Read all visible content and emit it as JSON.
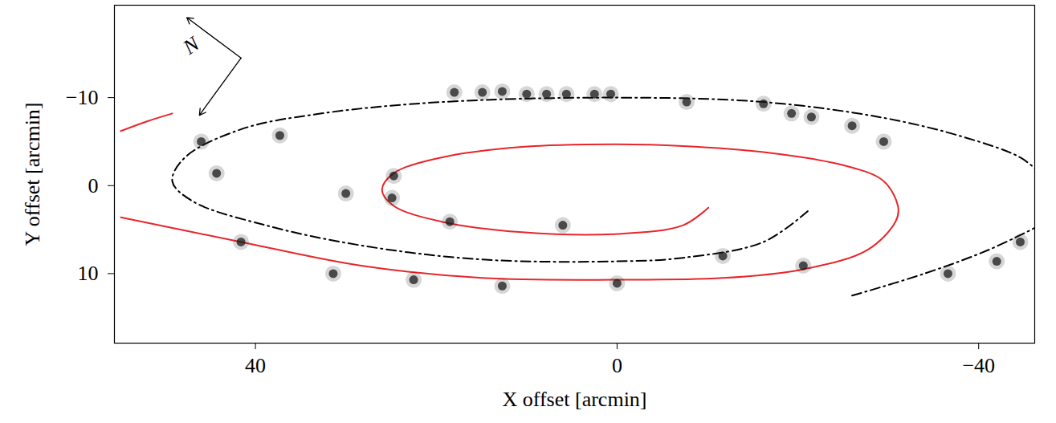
{
  "chart_data": {
    "type": "scatter",
    "xlabel": "X offset [arcmin]",
    "ylabel": "Y offset [arcmin]",
    "xlim": [
      -46.2,
      55.6
    ],
    "ylim": [
      -20.5,
      17.9
    ],
    "xticks": [
      40,
      0,
      -40
    ],
    "yticks": [
      -10,
      0,
      10
    ],
    "grid": false,
    "annotations": [
      {
        "text": "N",
        "x": 47.1,
        "y": -15.9
      }
    ],
    "series": [
      {
        "type": "line",
        "color": "#e8262b",
        "line_style": "solid",
        "values": [
          [
            54.9,
            3.6
          ],
          [
            41.6,
            6.4
          ],
          [
            28.3,
            9.1
          ],
          [
            14.9,
            10.5
          ],
          [
            0,
            10.7
          ],
          [
            -11.7,
            10.5
          ],
          [
            -20.6,
            9.5
          ],
          [
            -27.7,
            7.3
          ],
          [
            -30.8,
            4.1
          ],
          [
            -31.1,
            2.5
          ],
          [
            -29.5,
            -0.5
          ],
          [
            -25.1,
            -2.3
          ],
          [
            -16.2,
            -3.8
          ],
          [
            -7.3,
            -4.5
          ],
          [
            0,
            -4.7
          ],
          [
            10.5,
            -4.4
          ],
          [
            19.4,
            -3.2
          ],
          [
            24.7,
            -1.4
          ],
          [
            26.0,
            0.5
          ],
          [
            24.7,
            2.3
          ],
          [
            19.4,
            4.1
          ],
          [
            10.5,
            5.3
          ],
          [
            0,
            5.5
          ],
          [
            -7.3,
            4.5
          ],
          [
            -10.1,
            2.5
          ]
        ]
      },
      {
        "type": "line",
        "color": "#e8262b",
        "line_style": "solid",
        "values": [
          [
            54.9,
            -6.2
          ],
          [
            52.0,
            -7.3
          ],
          [
            49.2,
            -8.2
          ]
        ]
      },
      {
        "type": "line",
        "color": "#000000",
        "line_style": "dashdot",
        "values": [
          [
            -21.1,
            2.9
          ],
          [
            -16.2,
            6.4
          ],
          [
            -7.3,
            8.2
          ],
          [
            0,
            8.6
          ],
          [
            14.9,
            8.4
          ],
          [
            28.3,
            6.8
          ],
          [
            38.9,
            4.5
          ],
          [
            46.9,
            1.8
          ],
          [
            49.2,
            -0.5
          ],
          [
            47.8,
            -3.2
          ],
          [
            41.6,
            -6.4
          ],
          [
            32.7,
            -8.2
          ],
          [
            19.4,
            -9.5
          ],
          [
            0,
            -10.0
          ],
          [
            -16.2,
            -9.5
          ],
          [
            -29.5,
            -7.7
          ],
          [
            -38.4,
            -5.5
          ],
          [
            -44.6,
            -3.2
          ],
          [
            -46.8,
            -1.4
          ]
        ]
      },
      {
        "type": "line",
        "color": "#000000",
        "line_style": "dashdot",
        "values": [
          [
            -26.0,
            12.5
          ],
          [
            -34.0,
            10.0
          ],
          [
            -41.1,
            7.3
          ],
          [
            -46.8,
            4.5
          ]
        ]
      },
      {
        "type": "scatter",
        "color": "#1a1a1a",
        "marker": "circle",
        "values": [
          [
            18.0,
            -10.6
          ],
          [
            14.9,
            -10.6
          ],
          [
            12.7,
            -10.7
          ],
          [
            10.0,
            -10.4
          ],
          [
            7.8,
            -10.4
          ],
          [
            5.6,
            -10.4
          ],
          [
            2.5,
            -10.4
          ],
          [
            0.7,
            -10.4
          ],
          [
            -7.7,
            -9.5
          ],
          [
            -16.2,
            -9.3
          ],
          [
            -19.3,
            -8.2
          ],
          [
            -21.5,
            -7.8
          ],
          [
            -26.0,
            -6.8
          ],
          [
            -29.5,
            -5.0
          ],
          [
            46.0,
            -5.0
          ],
          [
            37.3,
            -5.7
          ],
          [
            24.7,
            -1.1
          ],
          [
            24.9,
            1.4
          ],
          [
            18.5,
            4.1
          ],
          [
            31.4,
            10.0
          ],
          [
            22.5,
            10.7
          ],
          [
            0,
            11.1
          ],
          [
            12.7,
            11.4
          ],
          [
            -42.0,
            8.6
          ],
          [
            41.6,
            6.4
          ],
          [
            -11.7,
            8.0
          ],
          [
            -20.6,
            9.1
          ],
          [
            -36.6,
            10.0
          ],
          [
            -44.6,
            6.4
          ],
          [
            44.3,
            -1.4
          ],
          [
            30.0,
            0.9
          ],
          [
            6.0,
            4.5
          ]
        ]
      }
    ]
  }
}
